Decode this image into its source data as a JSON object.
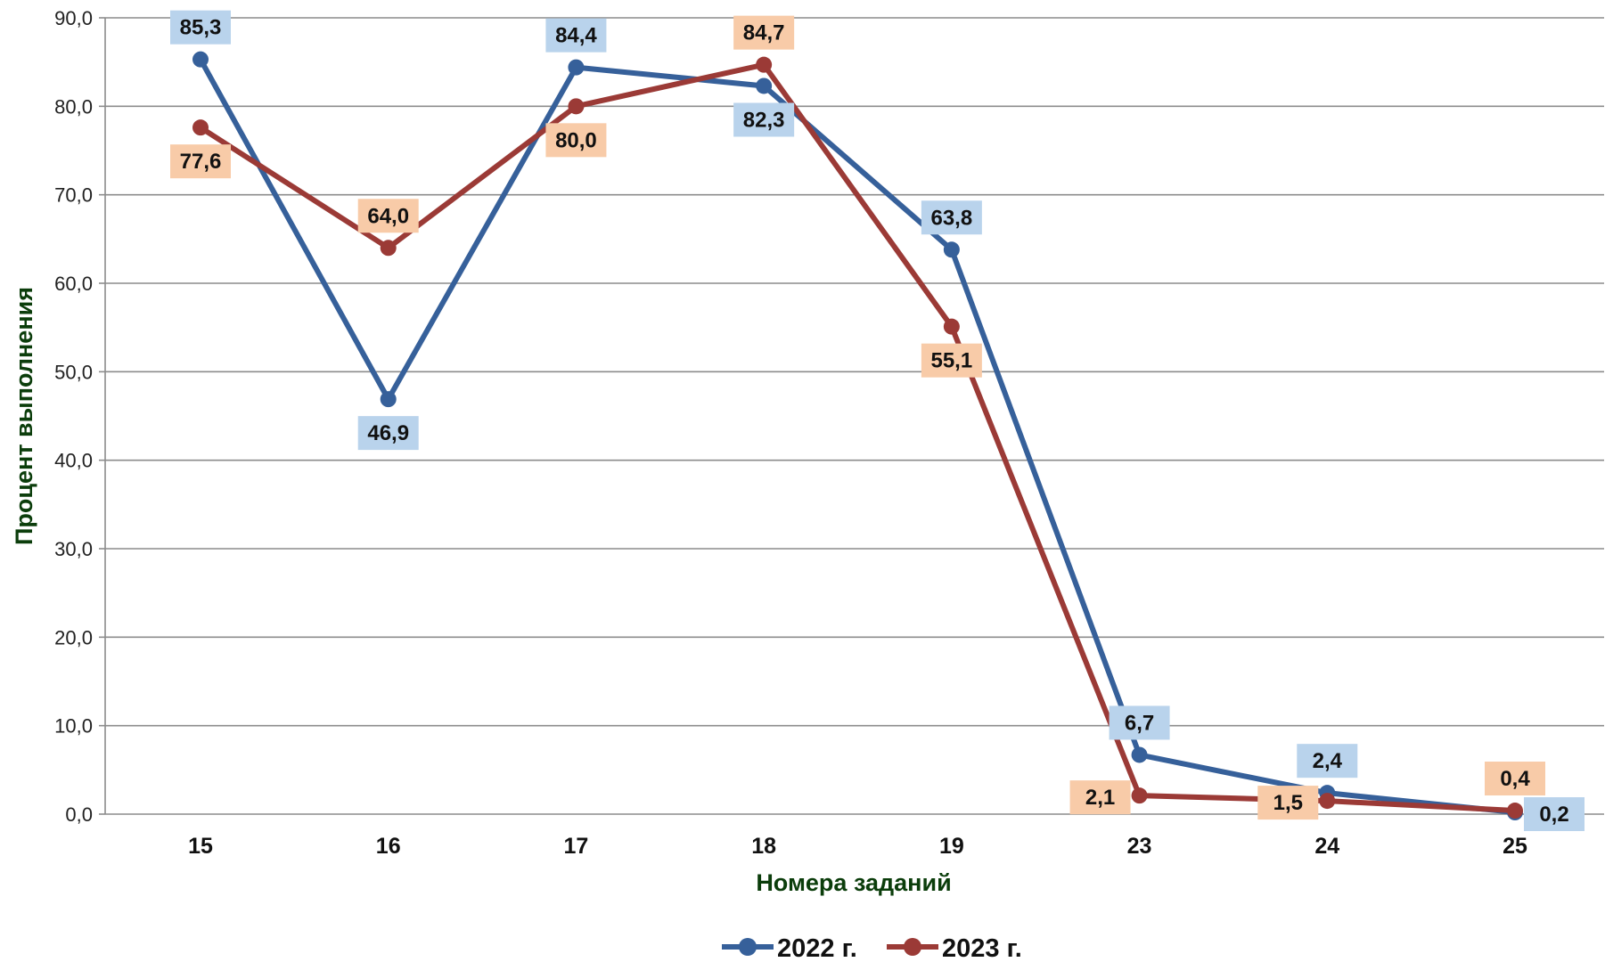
{
  "chart_data": {
    "type": "line",
    "categories": [
      "15",
      "16",
      "17",
      "18",
      "19",
      "23",
      "24",
      "25"
    ],
    "series": [
      {
        "name": "2022 г.",
        "values": [
          85.3,
          46.9,
          84.4,
          82.3,
          63.8,
          6.7,
          2.4,
          0.2
        ],
        "color": "#36609a",
        "label_bg": "#b9d3ec"
      },
      {
        "name": "2023 г.",
        "values": [
          77.6,
          64.0,
          80.0,
          84.7,
          55.1,
          2.1,
          1.5,
          0.4
        ],
        "color": "#9b3a36",
        "label_bg": "#f8cba8"
      }
    ],
    "xlabel": "Номера заданий",
    "ylabel": "Процент выполнения",
    "ylim": [
      0,
      90
    ],
    "yticks": [
      "0,0",
      "10,0",
      "20,0",
      "30,0",
      "40,0",
      "50,0",
      "60,0",
      "70,0",
      "80,0",
      "90,0"
    ],
    "grid": true,
    "legend_position": "bottom",
    "decimal_separator": ","
  }
}
